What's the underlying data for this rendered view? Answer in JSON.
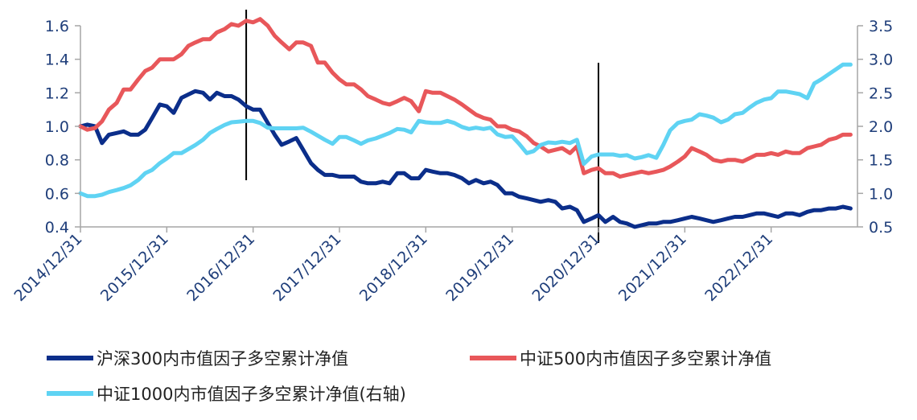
{
  "chart_data": {
    "type": "line",
    "x_labels": [
      "2014/12/31",
      "2015/12/31",
      "2016/12/31",
      "2017/12/31",
      "2018/12/31",
      "2019/12/31",
      "2020/12/31",
      "2021/12/31",
      "2022/12/31"
    ],
    "left_axis": {
      "ylim": [
        0.4,
        1.6
      ],
      "ticks": [
        "0.4",
        "0.6",
        "0.8",
        "1.0",
        "1.2",
        "1.4",
        "1.6"
      ]
    },
    "right_axis": {
      "ylim": [
        0.5,
        3.5
      ],
      "ticks": [
        "0.5",
        "1.0",
        "1.5",
        "2.0",
        "2.5",
        "3.0",
        "3.5"
      ]
    },
    "markers": [
      2016.92,
      2021.0
    ],
    "series": [
      {
        "name": "沪深300内市值因子多空累计净值",
        "axis": "left",
        "color": "#0b2e8a",
        "x": [
          2015.0,
          2015.08,
          2015.17,
          2015.25,
          2015.33,
          2015.42,
          2015.5,
          2015.58,
          2015.67,
          2015.75,
          2015.83,
          2015.92,
          2016.0,
          2016.08,
          2016.17,
          2016.25,
          2016.33,
          2016.42,
          2016.5,
          2016.58,
          2016.67,
          2016.75,
          2016.83,
          2016.92,
          2017.0,
          2017.08,
          2017.17,
          2017.25,
          2017.33,
          2017.42,
          2017.5,
          2017.58,
          2017.67,
          2017.75,
          2017.83,
          2017.92,
          2018.0,
          2018.08,
          2018.17,
          2018.25,
          2018.33,
          2018.42,
          2018.5,
          2018.58,
          2018.67,
          2018.75,
          2018.83,
          2018.92,
          2019.0,
          2019.08,
          2019.17,
          2019.25,
          2019.33,
          2019.42,
          2019.5,
          2019.58,
          2019.67,
          2019.75,
          2019.83,
          2019.92,
          2020.0,
          2020.08,
          2020.17,
          2020.25,
          2020.33,
          2020.42,
          2020.5,
          2020.58,
          2020.67,
          2020.75,
          2020.83,
          2020.92,
          2021.0,
          2021.08,
          2021.17,
          2021.25,
          2021.33,
          2021.42,
          2021.5,
          2021.58,
          2021.67,
          2021.75,
          2021.83,
          2021.92,
          2022.0,
          2022.08,
          2022.17,
          2022.25,
          2022.33,
          2022.42,
          2022.5,
          2022.58,
          2022.67,
          2022.75,
          2022.83,
          2022.92,
          2023.0,
          2023.08,
          2023.17,
          2023.25,
          2023.33,
          2023.42,
          2023.5,
          2023.58,
          2023.67,
          2023.75,
          2023.83,
          2023.92
        ],
        "values": [
          1.0,
          1.01,
          1.0,
          0.9,
          0.95,
          0.96,
          0.97,
          0.95,
          0.95,
          0.98,
          1.05,
          1.13,
          1.12,
          1.08,
          1.17,
          1.19,
          1.21,
          1.2,
          1.16,
          1.2,
          1.18,
          1.18,
          1.16,
          1.12,
          1.1,
          1.1,
          1.02,
          0.95,
          0.89,
          0.91,
          0.93,
          0.86,
          0.78,
          0.74,
          0.71,
          0.71,
          0.7,
          0.7,
          0.7,
          0.67,
          0.66,
          0.66,
          0.67,
          0.66,
          0.72,
          0.72,
          0.69,
          0.69,
          0.74,
          0.73,
          0.72,
          0.72,
          0.71,
          0.69,
          0.66,
          0.68,
          0.66,
          0.67,
          0.65,
          0.6,
          0.6,
          0.58,
          0.57,
          0.56,
          0.55,
          0.56,
          0.55,
          0.51,
          0.52,
          0.5,
          0.43,
          0.45,
          0.47,
          0.43,
          0.46,
          0.43,
          0.42,
          0.4,
          0.41,
          0.42,
          0.42,
          0.43,
          0.43,
          0.44,
          0.45,
          0.46,
          0.45,
          0.44,
          0.43,
          0.44,
          0.45,
          0.46,
          0.46,
          0.47,
          0.48,
          0.48,
          0.47,
          0.46,
          0.48,
          0.48,
          0.47,
          0.49,
          0.5,
          0.5,
          0.51,
          0.51,
          0.52,
          0.51
        ]
      },
      {
        "name": "中证500内市值因子多空累计净值",
        "axis": "left",
        "color": "#e8575a",
        "x": [
          2015.0,
          2015.08,
          2015.17,
          2015.25,
          2015.33,
          2015.42,
          2015.5,
          2015.58,
          2015.67,
          2015.75,
          2015.83,
          2015.92,
          2016.0,
          2016.08,
          2016.17,
          2016.25,
          2016.33,
          2016.42,
          2016.5,
          2016.58,
          2016.67,
          2016.75,
          2016.83,
          2016.92,
          2017.0,
          2017.08,
          2017.17,
          2017.25,
          2017.33,
          2017.42,
          2017.5,
          2017.58,
          2017.67,
          2017.75,
          2017.83,
          2017.92,
          2018.0,
          2018.08,
          2018.17,
          2018.25,
          2018.33,
          2018.42,
          2018.5,
          2018.58,
          2018.67,
          2018.75,
          2018.83,
          2018.92,
          2019.0,
          2019.08,
          2019.17,
          2019.25,
          2019.33,
          2019.42,
          2019.5,
          2019.58,
          2019.67,
          2019.75,
          2019.83,
          2019.92,
          2020.0,
          2020.08,
          2020.17,
          2020.25,
          2020.33,
          2020.42,
          2020.5,
          2020.58,
          2020.67,
          2020.75,
          2020.83,
          2020.92,
          2021.0,
          2021.08,
          2021.17,
          2021.25,
          2021.33,
          2021.42,
          2021.5,
          2021.58,
          2021.67,
          2021.75,
          2021.83,
          2021.92,
          2022.0,
          2022.08,
          2022.17,
          2022.25,
          2022.33,
          2022.42,
          2022.5,
          2022.58,
          2022.67,
          2022.75,
          2022.83,
          2022.92,
          2023.0,
          2023.08,
          2023.17,
          2023.25,
          2023.33,
          2023.42,
          2023.5,
          2023.58,
          2023.67,
          2023.75,
          2023.83,
          2023.92
        ],
        "values": [
          1.0,
          0.98,
          0.99,
          1.03,
          1.1,
          1.14,
          1.22,
          1.22,
          1.28,
          1.33,
          1.35,
          1.4,
          1.4,
          1.4,
          1.43,
          1.48,
          1.5,
          1.52,
          1.52,
          1.56,
          1.58,
          1.61,
          1.6,
          1.63,
          1.62,
          1.64,
          1.6,
          1.54,
          1.5,
          1.46,
          1.5,
          1.5,
          1.48,
          1.38,
          1.38,
          1.32,
          1.28,
          1.25,
          1.25,
          1.22,
          1.18,
          1.16,
          1.14,
          1.13,
          1.15,
          1.17,
          1.15,
          1.09,
          1.21,
          1.2,
          1.2,
          1.18,
          1.16,
          1.13,
          1.1,
          1.07,
          1.05,
          1.04,
          1.0,
          1.0,
          0.98,
          0.97,
          0.94,
          0.9,
          0.88,
          0.85,
          0.86,
          0.87,
          0.84,
          0.88,
          0.72,
          0.74,
          0.75,
          0.72,
          0.72,
          0.7,
          0.71,
          0.72,
          0.73,
          0.72,
          0.73,
          0.74,
          0.76,
          0.79,
          0.82,
          0.87,
          0.85,
          0.83,
          0.8,
          0.79,
          0.8,
          0.8,
          0.79,
          0.81,
          0.83,
          0.83,
          0.84,
          0.83,
          0.85,
          0.84,
          0.84,
          0.87,
          0.88,
          0.89,
          0.92,
          0.93,
          0.95,
          0.95
        ]
      },
      {
        "name": "中证1000内市值因子多空累计净值(右轴)",
        "axis": "right",
        "color": "#5fd3f3",
        "x": [
          2015.0,
          2015.08,
          2015.17,
          2015.25,
          2015.33,
          2015.42,
          2015.5,
          2015.58,
          2015.67,
          2015.75,
          2015.83,
          2015.92,
          2016.0,
          2016.08,
          2016.17,
          2016.25,
          2016.33,
          2016.42,
          2016.5,
          2016.58,
          2016.67,
          2016.75,
          2016.83,
          2016.92,
          2017.0,
          2017.08,
          2017.17,
          2017.25,
          2017.33,
          2017.42,
          2017.5,
          2017.58,
          2017.67,
          2017.75,
          2017.83,
          2017.92,
          2018.0,
          2018.08,
          2018.17,
          2018.25,
          2018.33,
          2018.42,
          2018.5,
          2018.58,
          2018.67,
          2018.75,
          2018.83,
          2018.92,
          2019.0,
          2019.08,
          2019.17,
          2019.25,
          2019.33,
          2019.42,
          2019.5,
          2019.58,
          2019.67,
          2019.75,
          2019.83,
          2019.92,
          2020.0,
          2020.08,
          2020.17,
          2020.25,
          2020.33,
          2020.42,
          2020.5,
          2020.58,
          2020.67,
          2020.75,
          2020.83,
          2020.92,
          2021.0,
          2021.08,
          2021.17,
          2021.25,
          2021.33,
          2021.42,
          2021.5,
          2021.58,
          2021.67,
          2021.75,
          2021.83,
          2021.92,
          2022.0,
          2022.08,
          2022.17,
          2022.25,
          2022.33,
          2022.42,
          2022.5,
          2022.58,
          2022.67,
          2022.75,
          2022.83,
          2022.92,
          2023.0,
          2023.08,
          2023.17,
          2023.25,
          2023.33,
          2023.42,
          2023.5,
          2023.58,
          2023.67,
          2023.75,
          2023.83,
          2023.92
        ],
        "values": [
          1.0,
          0.96,
          0.96,
          0.98,
          1.02,
          1.05,
          1.08,
          1.12,
          1.2,
          1.3,
          1.35,
          1.45,
          1.52,
          1.6,
          1.6,
          1.66,
          1.72,
          1.8,
          1.9,
          1.96,
          2.02,
          2.06,
          2.07,
          2.08,
          2.08,
          2.05,
          1.98,
          1.97,
          1.97,
          1.97,
          1.97,
          1.98,
          1.92,
          1.86,
          1.8,
          1.74,
          1.84,
          1.84,
          1.79,
          1.74,
          1.79,
          1.82,
          1.86,
          1.9,
          1.96,
          1.95,
          1.91,
          2.08,
          2.06,
          2.05,
          2.05,
          2.08,
          2.05,
          1.99,
          1.96,
          1.98,
          1.96,
          1.98,
          1.88,
          1.84,
          1.85,
          1.74,
          1.6,
          1.63,
          1.72,
          1.76,
          1.75,
          1.77,
          1.75,
          1.8,
          1.44,
          1.55,
          1.58,
          1.58,
          1.58,
          1.56,
          1.57,
          1.52,
          1.54,
          1.57,
          1.53,
          1.72,
          1.94,
          2.05,
          2.08,
          2.1,
          2.18,
          2.16,
          2.13,
          2.06,
          2.1,
          2.18,
          2.2,
          2.28,
          2.35,
          2.4,
          2.42,
          2.52,
          2.52,
          2.5,
          2.48,
          2.42,
          2.64,
          2.7,
          2.78,
          2.85,
          2.92,
          2.92
        ]
      }
    ]
  }
}
